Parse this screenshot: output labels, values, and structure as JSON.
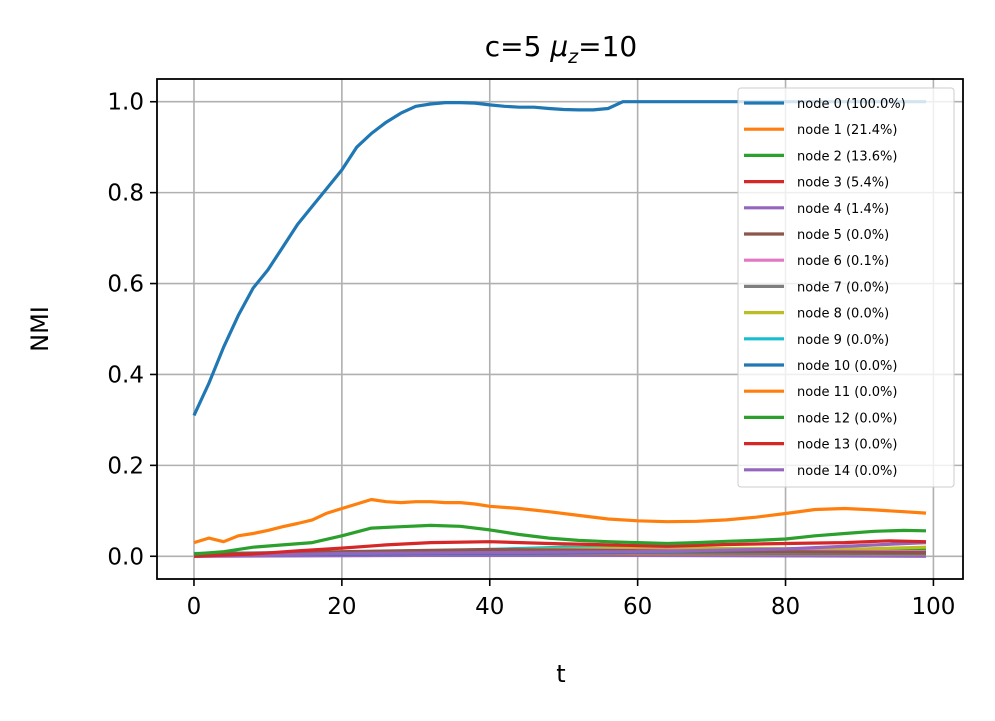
{
  "chart_data": {
    "type": "line",
    "title": "c=5 μz=10",
    "title_parts": {
      "prefix": "c=5 ",
      "mu": "μ",
      "sub": "z",
      "suffix": "=10"
    },
    "xlabel": "t",
    "ylabel": "NMI",
    "xlim": [
      -5,
      104
    ],
    "ylim": [
      -0.05,
      1.05
    ],
    "xticks": [
      0,
      20,
      40,
      60,
      80,
      100
    ],
    "yticks": [
      0.0,
      0.2,
      0.4,
      0.6,
      0.8,
      1.0
    ],
    "xtick_labels": [
      "0",
      "20",
      "40",
      "60",
      "80",
      "100"
    ],
    "ytick_labels": [
      "0.0",
      "0.2",
      "0.4",
      "0.6",
      "0.8",
      "1.0"
    ],
    "grid": true,
    "legend_position": "top-right",
    "series": [
      {
        "name": "node 0 (100.0%)",
        "color": "#1f77b4",
        "points": [
          [
            0,
            0.31
          ],
          [
            2,
            0.38
          ],
          [
            4,
            0.46
          ],
          [
            6,
            0.53
          ],
          [
            8,
            0.59
          ],
          [
            10,
            0.63
          ],
          [
            12,
            0.68
          ],
          [
            14,
            0.73
          ],
          [
            16,
            0.77
          ],
          [
            18,
            0.81
          ],
          [
            20,
            0.85
          ],
          [
            22,
            0.9
          ],
          [
            24,
            0.93
          ],
          [
            26,
            0.955
          ],
          [
            28,
            0.975
          ],
          [
            30,
            0.99
          ],
          [
            32,
            0.995
          ],
          [
            34,
            0.998
          ],
          [
            36,
            0.998
          ],
          [
            38,
            0.997
          ],
          [
            40,
            0.993
          ],
          [
            42,
            0.99
          ],
          [
            44,
            0.988
          ],
          [
            46,
            0.988
          ],
          [
            48,
            0.985
          ],
          [
            50,
            0.983
          ],
          [
            52,
            0.982
          ],
          [
            54,
            0.982
          ],
          [
            56,
            0.985
          ],
          [
            58,
            1.0
          ],
          [
            60,
            1.0
          ],
          [
            70,
            1.0
          ],
          [
            80,
            1.0
          ],
          [
            90,
            1.0
          ],
          [
            99,
            1.0
          ]
        ]
      },
      {
        "name": "node 1 (21.4%)",
        "color": "#ff7f0e",
        "points": [
          [
            0,
            0.03
          ],
          [
            2,
            0.04
          ],
          [
            4,
            0.032
          ],
          [
            6,
            0.045
          ],
          [
            8,
            0.05
          ],
          [
            10,
            0.057
          ],
          [
            12,
            0.065
          ],
          [
            14,
            0.072
          ],
          [
            16,
            0.08
          ],
          [
            18,
            0.095
          ],
          [
            20,
            0.105
          ],
          [
            22,
            0.115
          ],
          [
            24,
            0.125
          ],
          [
            26,
            0.12
          ],
          [
            28,
            0.118
          ],
          [
            30,
            0.12
          ],
          [
            32,
            0.12
          ],
          [
            34,
            0.118
          ],
          [
            36,
            0.118
          ],
          [
            38,
            0.115
          ],
          [
            40,
            0.11
          ],
          [
            44,
            0.105
          ],
          [
            48,
            0.098
          ],
          [
            52,
            0.09
          ],
          [
            56,
            0.082
          ],
          [
            60,
            0.078
          ],
          [
            64,
            0.076
          ],
          [
            68,
            0.077
          ],
          [
            72,
            0.08
          ],
          [
            76,
            0.086
          ],
          [
            80,
            0.094
          ],
          [
            84,
            0.103
          ],
          [
            88,
            0.105
          ],
          [
            92,
            0.102
          ],
          [
            96,
            0.098
          ],
          [
            99,
            0.095
          ]
        ]
      },
      {
        "name": "node 2 (13.6%)",
        "color": "#2ca02c",
        "points": [
          [
            0,
            0.005
          ],
          [
            4,
            0.01
          ],
          [
            8,
            0.02
          ],
          [
            12,
            0.025
          ],
          [
            16,
            0.03
          ],
          [
            20,
            0.045
          ],
          [
            24,
            0.062
          ],
          [
            28,
            0.065
          ],
          [
            32,
            0.068
          ],
          [
            36,
            0.066
          ],
          [
            40,
            0.058
          ],
          [
            44,
            0.048
          ],
          [
            48,
            0.04
          ],
          [
            52,
            0.035
          ],
          [
            56,
            0.032
          ],
          [
            60,
            0.03
          ],
          [
            64,
            0.028
          ],
          [
            68,
            0.03
          ],
          [
            72,
            0.033
          ],
          [
            76,
            0.035
          ],
          [
            80,
            0.038
          ],
          [
            84,
            0.045
          ],
          [
            88,
            0.05
          ],
          [
            92,
            0.055
          ],
          [
            96,
            0.057
          ],
          [
            99,
            0.056
          ]
        ]
      },
      {
        "name": "node 3 (5.4%)",
        "color": "#d62728",
        "points": [
          [
            0,
            0.0
          ],
          [
            8,
            0.005
          ],
          [
            14,
            0.012
          ],
          [
            20,
            0.018
          ],
          [
            26,
            0.025
          ],
          [
            32,
            0.03
          ],
          [
            40,
            0.032
          ],
          [
            48,
            0.028
          ],
          [
            56,
            0.025
          ],
          [
            64,
            0.022
          ],
          [
            72,
            0.026
          ],
          [
            80,
            0.028
          ],
          [
            88,
            0.03
          ],
          [
            94,
            0.034
          ],
          [
            99,
            0.032
          ]
        ]
      },
      {
        "name": "node 4 (1.4%)",
        "color": "#9467bd",
        "points": [
          [
            0,
            0.0
          ],
          [
            20,
            0.006
          ],
          [
            40,
            0.008
          ],
          [
            60,
            0.01
          ],
          [
            80,
            0.016
          ],
          [
            99,
            0.03
          ]
        ]
      },
      {
        "name": "node 5 (0.0%)",
        "color": "#8c564b",
        "points": [
          [
            0,
            0.005
          ],
          [
            20,
            0.01
          ],
          [
            40,
            0.015
          ],
          [
            60,
            0.012
          ],
          [
            80,
            0.01
          ],
          [
            99,
            0.008
          ]
        ]
      },
      {
        "name": "node 6 (0.1%)",
        "color": "#e377c2",
        "points": [
          [
            0,
            0.002
          ],
          [
            25,
            0.01
          ],
          [
            50,
            0.014
          ],
          [
            75,
            0.012
          ],
          [
            99,
            0.01
          ]
        ]
      },
      {
        "name": "node 7 (0.0%)",
        "color": "#7f7f7f",
        "points": [
          [
            0,
            0.003
          ],
          [
            25,
            0.008
          ],
          [
            50,
            0.01
          ],
          [
            75,
            0.009
          ],
          [
            99,
            0.007
          ]
        ]
      },
      {
        "name": "node 8 (0.0%)",
        "color": "#bcbd22",
        "points": [
          [
            0,
            0.004
          ],
          [
            30,
            0.012
          ],
          [
            60,
            0.018
          ],
          [
            90,
            0.016
          ],
          [
            99,
            0.02
          ]
        ]
      },
      {
        "name": "node 9 (0.0%)",
        "color": "#17becf",
        "points": [
          [
            0,
            0.006
          ],
          [
            30,
            0.01
          ],
          [
            50,
            0.02
          ],
          [
            70,
            0.015
          ],
          [
            99,
            0.01
          ]
        ]
      },
      {
        "name": "node 10 (0.0%)",
        "color": "#1f77b4",
        "points": [
          [
            0,
            0.002
          ],
          [
            30,
            0.006
          ],
          [
            60,
            0.008
          ],
          [
            99,
            0.006
          ]
        ]
      },
      {
        "name": "node 11 (0.0%)",
        "color": "#ff7f0e",
        "points": [
          [
            0,
            0.003
          ],
          [
            30,
            0.008
          ],
          [
            60,
            0.006
          ],
          [
            99,
            0.005
          ]
        ]
      },
      {
        "name": "node 12 (0.0%)",
        "color": "#2ca02c",
        "points": [
          [
            0,
            0.004
          ],
          [
            30,
            0.01
          ],
          [
            60,
            0.012
          ],
          [
            99,
            0.015
          ]
        ]
      },
      {
        "name": "node 13 (0.0%)",
        "color": "#d62728",
        "points": [
          [
            0,
            0.002
          ],
          [
            30,
            0.012
          ],
          [
            60,
            0.01
          ],
          [
            99,
            0.008
          ]
        ]
      },
      {
        "name": "node 14 (0.0%)",
        "color": "#9467bd",
        "points": [
          [
            0,
            0.0
          ],
          [
            30,
            0.002
          ],
          [
            60,
            0.002
          ],
          [
            99,
            0.0
          ]
        ]
      }
    ]
  }
}
